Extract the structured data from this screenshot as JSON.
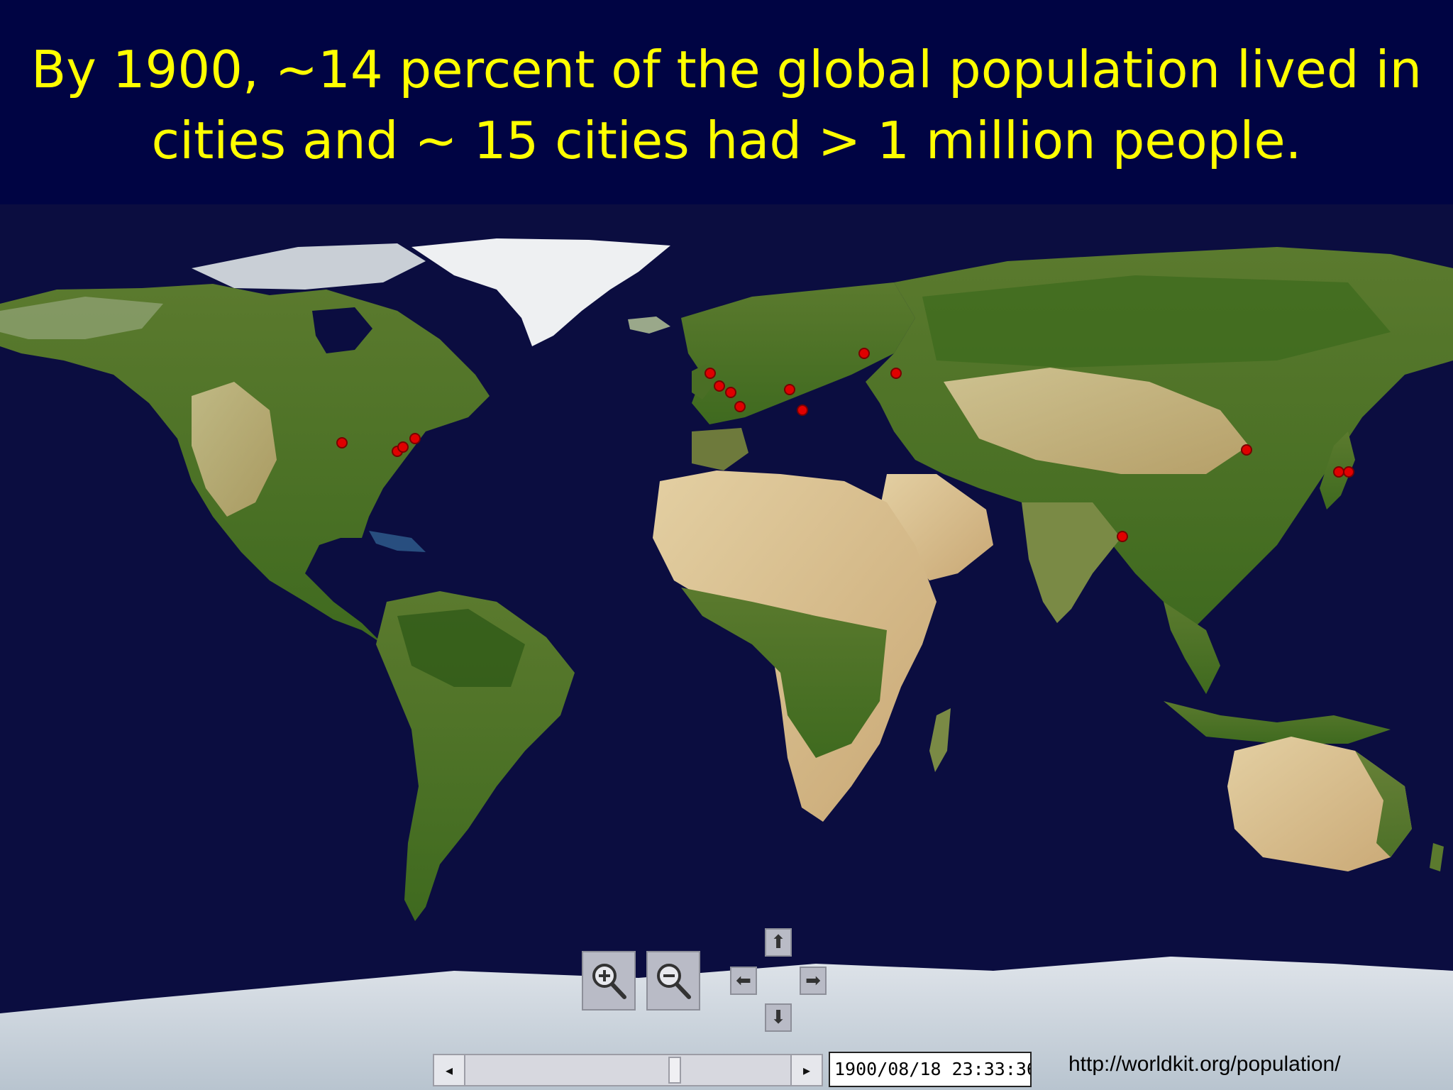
{
  "slide": {
    "title_line1": "By 1900, ~14 percent of the global population lived in",
    "title_line2": "cities and ~ 15 cities had > 1 million people.",
    "title_color": "#ffff00",
    "background_color": "#000443"
  },
  "map": {
    "ocean_color": "#0b0d40",
    "marker_color": "#e00000",
    "controls": {
      "zoom_in_icon": "zoom-in-magnifier-icon",
      "zoom_out_icon": "zoom-out-magnifier-icon",
      "pan_up_icon": "arrow-up-icon",
      "pan_down_icon": "arrow-down-icon",
      "pan_left_icon": "arrow-left-icon",
      "pan_right_icon": "arrow-right-icon"
    },
    "timeline": {
      "date_value": "1900/08/18 23:33:36",
      "left_arrow": "◂",
      "right_arrow": "▸"
    }
  },
  "source": {
    "url_text": "http://worldkit.org/population/"
  }
}
